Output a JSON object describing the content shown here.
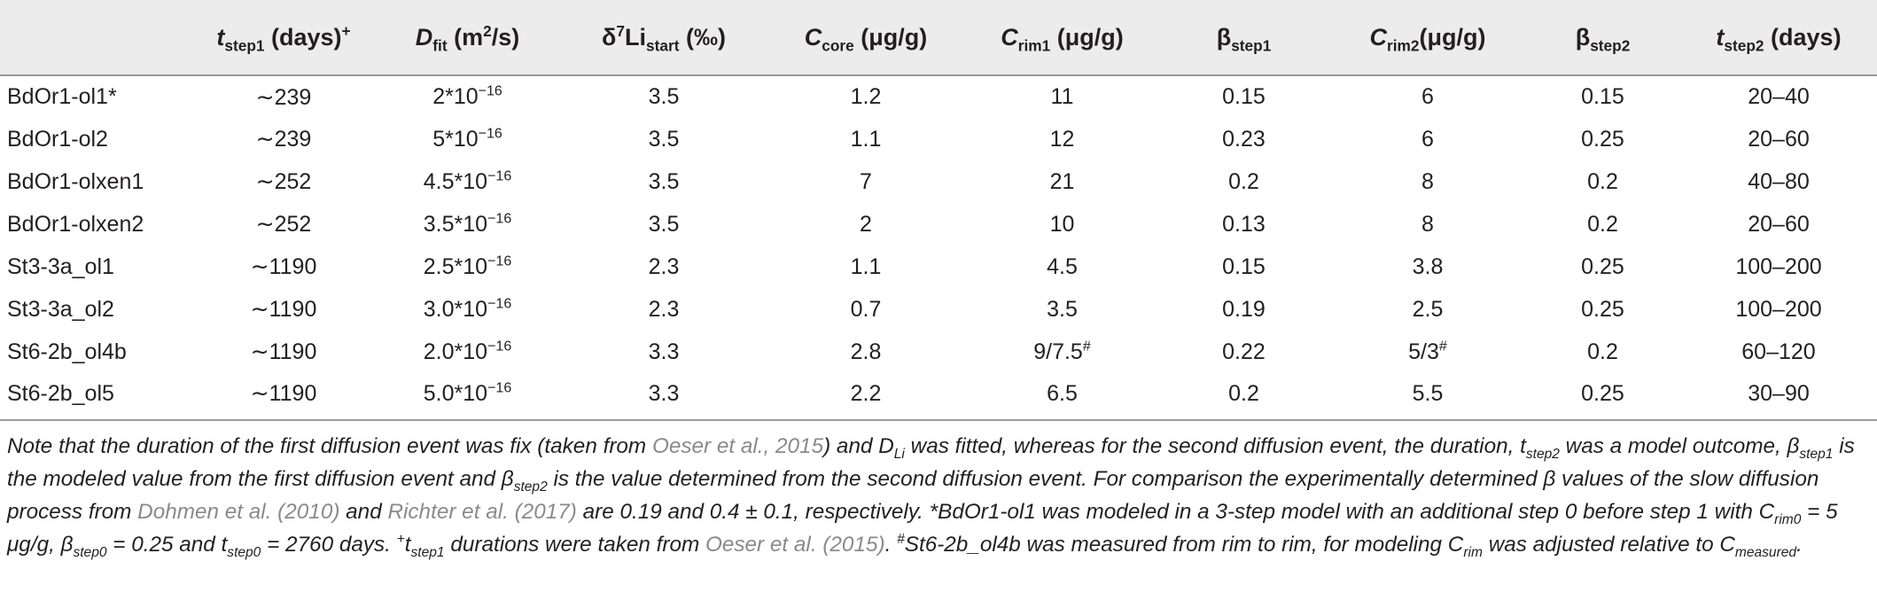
{
  "header": {
    "c1": {
      "main": "t",
      "sub": "step1",
      "rest": " (days)",
      "sup": "+"
    },
    "c2": {
      "main": "D",
      "sub": "fit",
      "rest": " (m",
      "sup": "2",
      "rest2": "/s)"
    },
    "c3": {
      "pre": "δ",
      "sup": "7",
      "main": "Li",
      "sub": "start",
      "rest": " (‰)"
    },
    "c4": {
      "main": "C",
      "sub": "core",
      "rest": " (μg/g)"
    },
    "c5": {
      "main": "C",
      "sub": "rim1",
      "rest": " (μg/g)"
    },
    "c6": {
      "main": "β",
      "sub": "step1"
    },
    "c7": {
      "main": "C",
      "sub": "rim2",
      "rest": "(μg/g)"
    },
    "c8": {
      "main": "β",
      "sub": "step2"
    },
    "c9": {
      "main": "t",
      "sub": "step2",
      "rest": " (days)"
    }
  },
  "rows": [
    {
      "name": "BdOr1-ol1*",
      "t1": "∼239",
      "dfit": "2*10",
      "dexp": "−16",
      "d7": "3.5",
      "ccore": "1.2",
      "crim1": "11",
      "crim1_sup": "",
      "b1": "0.15",
      "crim2": "6",
      "crim2_sup": "",
      "b2": "0.15",
      "t2": "20–40"
    },
    {
      "name": "BdOr1-ol2",
      "t1": "∼239",
      "dfit": "5*10",
      "dexp": "−16",
      "d7": "3.5",
      "ccore": "1.1",
      "crim1": "12",
      "crim1_sup": "",
      "b1": "0.23",
      "crim2": "6",
      "crim2_sup": "",
      "b2": "0.25",
      "t2": "20–60"
    },
    {
      "name": "BdOr1-olxen1",
      "t1": "∼252",
      "dfit": "4.5*10",
      "dexp": "−16",
      "d7": "3.5",
      "ccore": "7",
      "crim1": "21",
      "crim1_sup": "",
      "b1": "0.2",
      "crim2": "8",
      "crim2_sup": "",
      "b2": "0.2",
      "t2": "40–80"
    },
    {
      "name": "BdOr1-olxen2",
      "t1": "∼252",
      "dfit": "3.5*10",
      "dexp": "−16",
      "d7": "3.5",
      "ccore": "2",
      "crim1": "10",
      "crim1_sup": "",
      "b1": "0.13",
      "crim2": "8",
      "crim2_sup": "",
      "b2": "0.2",
      "t2": "20–60"
    },
    {
      "name": "St3-3a_ol1",
      "t1": "∼1190",
      "dfit": "2.5*10",
      "dexp": "−16",
      "d7": "2.3",
      "ccore": "1.1",
      "crim1": "4.5",
      "crim1_sup": "",
      "b1": "0.15",
      "crim2": "3.8",
      "crim2_sup": "",
      "b2": "0.25",
      "t2": "100–200"
    },
    {
      "name": "St3-3a_ol2",
      "t1": "∼1190",
      "dfit": "3.0*10",
      "dexp": "−16",
      "d7": "2.3",
      "ccore": "0.7",
      "crim1": "3.5",
      "crim1_sup": "",
      "b1": "0.19",
      "crim2": "2.5",
      "crim2_sup": "",
      "b2": "0.25",
      "t2": "100–200"
    },
    {
      "name": "St6-2b_ol4b",
      "t1": "∼1190",
      "dfit": "2.0*10",
      "dexp": "−16",
      "d7": "3.3",
      "ccore": "2.8",
      "crim1": "9/7.5",
      "crim1_sup": "#",
      "b1": "0.22",
      "crim2": "5/3",
      "crim2_sup": "#",
      "b2": "0.2",
      "t2": "60–120"
    },
    {
      "name": "St6-2b_ol5",
      "t1": "∼1190",
      "dfit": "5.0*10",
      "dexp": "−16",
      "d7": "3.3",
      "ccore": "2.2",
      "crim1": "6.5",
      "crim1_sup": "",
      "b1": "0.2",
      "crim2": "5.5",
      "crim2_sup": "",
      "b2": "0.25",
      "t2": "30–90"
    }
  ],
  "note": {
    "s1": "Note that the duration of the first diffusion event was fix (taken from ",
    "r1": "Oeser et al., 2015",
    "s2": ") and D",
    "s2sub": "Li",
    "s3": " was fitted, whereas for the second diffusion event, the duration, t",
    "s3sub": "step2",
    "s4": " was a model outcome, β",
    "s4sub": "step1",
    "s5": " is the modeled value from the first diffusion event and β",
    "s5sub": "step2",
    "s6": " is the value determined from the second diffusion event. For comparison the experimentally determined β values of the slow diffusion process from ",
    "r2": "Dohmen et al. (2010)",
    "s7": " and ",
    "r3": "Richter et al. (2017)",
    "s8": " are 0.19 and 0.4 ± 0.1, respectively. *BdOr1-ol1 was modeled in a 3-step model with an additional step 0 before step 1 with C",
    "s8sub": "rim0",
    "s9": " = 5 μg/g, β",
    "s9sub": "step0",
    "s10": " = 0.25 and t",
    "s10sub": "step0",
    "s11": " = 2760 days. ",
    "s11sup": "+",
    "s12": "t",
    "s12sub": "step1",
    "s13": " durations were taken from ",
    "r4": "Oeser et al. (2015)",
    "s14": ". ",
    "s14sup": "#",
    "s15": "St6-2b_ol4b was measured from rim to rim, for modeling C",
    "s15sub": "rim",
    "s16": " was adjusted relative to C",
    "s16sub": "measured",
    "s17": "."
  }
}
